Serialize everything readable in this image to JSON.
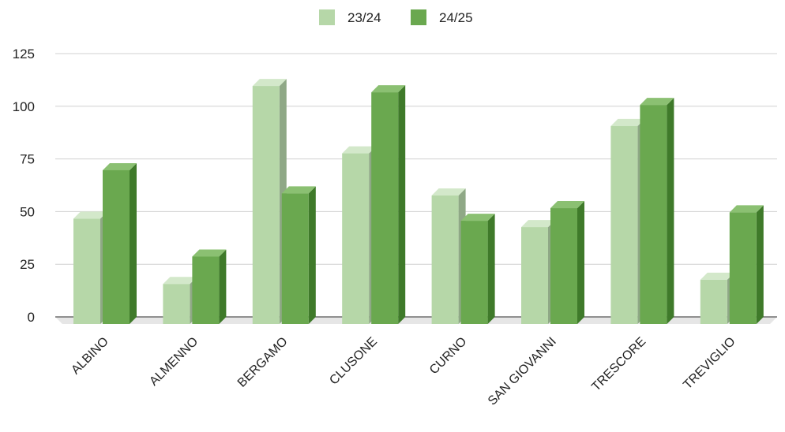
{
  "chart_data": {
    "type": "bar",
    "style": "3d-clustered-column",
    "categories": [
      "ALBINO",
      "ALMENNO",
      "BERGAMO",
      "CLUSONE",
      "CURNO",
      "SAN GIOVANNI",
      "TRESCORE",
      "TREVIGLIO"
    ],
    "series": [
      {
        "name": "23/24",
        "values": [
          50,
          19,
          113,
          81,
          61,
          46,
          94,
          21
        ]
      },
      {
        "name": "24/25",
        "values": [
          73,
          32,
          62,
          110,
          49,
          55,
          104,
          53
        ]
      }
    ],
    "y_ticks": [
      "0",
      "25",
      "50",
      "75",
      "100",
      "125"
    ],
    "ylim": [
      0,
      125
    ],
    "grid": true,
    "legend_position": "top-center",
    "title": "",
    "xlabel": "",
    "ylabel": "",
    "colors": {
      "series_front": [
        "#b6d7a8",
        "#6aa84f"
      ],
      "series_top": [
        "#d3e8ca",
        "#8bc072"
      ],
      "series_side": [
        "#8fa886",
        "#3f7a2a"
      ],
      "grid": "#d0d0d0",
      "floor": "#e6e6e6"
    }
  }
}
